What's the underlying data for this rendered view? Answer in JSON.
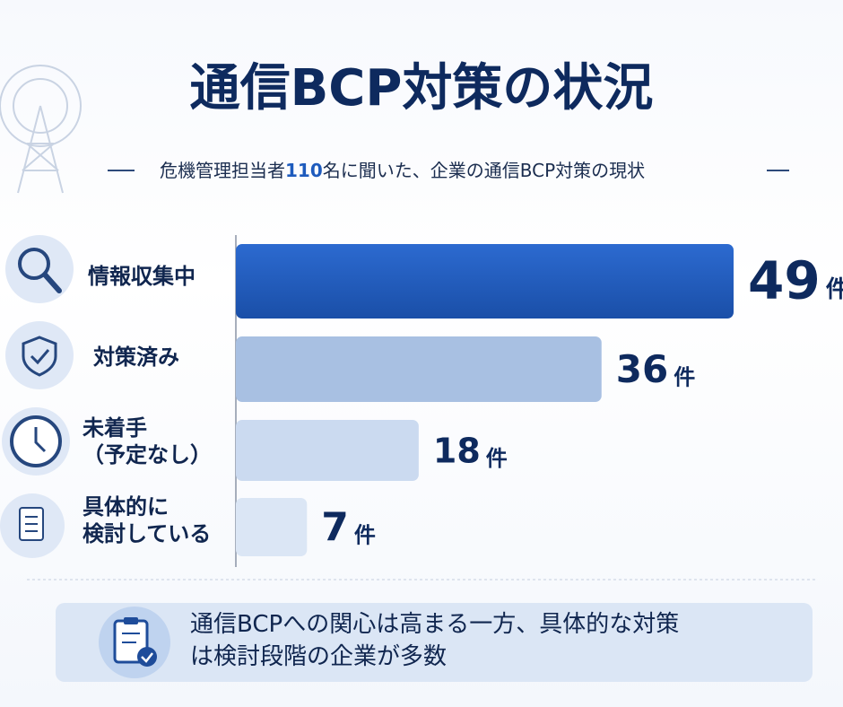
{
  "chart_data": {
    "type": "bar",
    "title": "通信BCP対策の状況",
    "subtitle": [
      "危機管理担当者",
      "110",
      "名に聞いた、企業の通信BCP対策の現状"
    ],
    "categories": [
      "情報収集中",
      "対策済み",
      "未着手\n（予定なし）",
      "具体的に\n検討している"
    ],
    "values": [
      49,
      36,
      18,
      7
    ],
    "unit": "件",
    "colors": [
      "#1e5bbd",
      "#a8c0e2",
      "#cbdaf0",
      "#dbe6f5"
    ],
    "note": "通信BCPへの関心は高まる一方、具体的な対策\nは検討段階の企業が多数"
  }
}
